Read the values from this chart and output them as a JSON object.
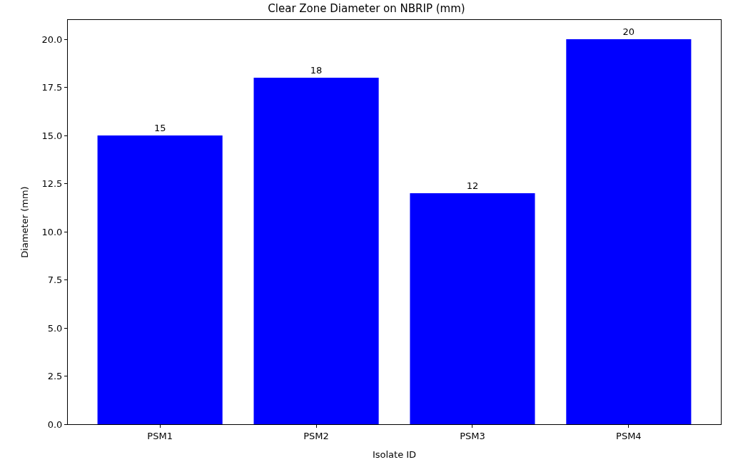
{
  "chart_data": {
    "type": "bar",
    "title": "Clear Zone Diameter on NBRIP (mm)",
    "xlabel": "Isolate ID",
    "ylabel": "Diameter (mm)",
    "categories": [
      "PSM1",
      "PSM2",
      "PSM3",
      "PSM4"
    ],
    "values": [
      15,
      18,
      12,
      20
    ],
    "color": "#0000ff",
    "ylim": [
      0,
      21
    ],
    "yticks": [
      {
        "value": 0,
        "label": "0.0"
      },
      {
        "value": 2.5,
        "label": "2.5"
      },
      {
        "value": 5,
        "label": "5.0"
      },
      {
        "value": 7.5,
        "label": "7.5"
      },
      {
        "value": 10,
        "label": "10.0"
      },
      {
        "value": 12.5,
        "label": "12.5"
      },
      {
        "value": 15,
        "label": "15.0"
      },
      {
        "value": 17.5,
        "label": "17.5"
      },
      {
        "value": 20,
        "label": "20.0"
      }
    ],
    "data_labels": true
  }
}
